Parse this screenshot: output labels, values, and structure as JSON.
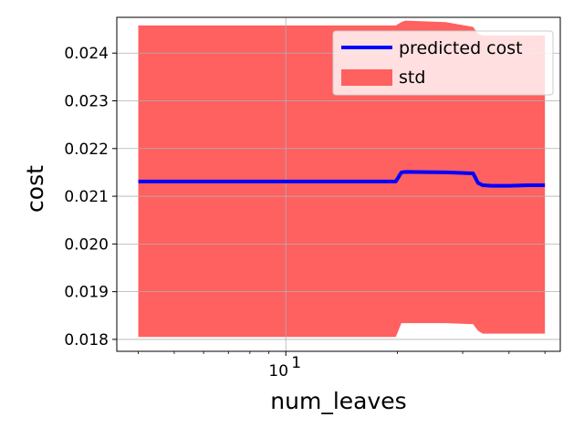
{
  "chart_data": {
    "type": "line",
    "xlabel": "num_leaves",
    "ylabel": "cost",
    "xscale": "log",
    "xlim": [
      3.5,
      55
    ],
    "ylim": [
      0.01775,
      0.02475
    ],
    "grid": true,
    "legend_position": "top-right",
    "x_ticks": [
      {
        "value": 10,
        "label": "10",
        "exponent": "1"
      }
    ],
    "y_ticks": [
      {
        "value": 0.018,
        "label": "0.018"
      },
      {
        "value": 0.019,
        "label": "0.019"
      },
      {
        "value": 0.02,
        "label": "0.020"
      },
      {
        "value": 0.021,
        "label": "0.021"
      },
      {
        "value": 0.022,
        "label": "0.022"
      },
      {
        "value": 0.023,
        "label": "0.023"
      },
      {
        "value": 0.024,
        "label": "0.024"
      }
    ],
    "series": [
      {
        "name": "predicted cost",
        "color": "#0000ff",
        "x": [
          4,
          19.8,
          20.5,
          21,
          27,
          32,
          33,
          34,
          36,
          40,
          45,
          50
        ],
        "y": [
          0.02131,
          0.02131,
          0.0215,
          0.02151,
          0.0215,
          0.02148,
          0.02128,
          0.02123,
          0.02122,
          0.02122,
          0.02123,
          0.02123
        ]
      },
      {
        "name": "std",
        "color": "#ff6060",
        "x": [
          4,
          19.8,
          20.5,
          21,
          27,
          32,
          33,
          34,
          36,
          40,
          45,
          50
        ],
        "upper": [
          0.02458,
          0.02458,
          0.02465,
          0.02468,
          0.02465,
          0.02455,
          0.0244,
          0.02437,
          0.02437,
          0.02437,
          0.02437,
          0.02437
        ],
        "lower": [
          0.01805,
          0.01805,
          0.01834,
          0.01834,
          0.01834,
          0.01832,
          0.01818,
          0.01812,
          0.01812,
          0.01812,
          0.01812,
          0.01812
        ]
      }
    ],
    "legend": [
      {
        "label": "predicted cost",
        "kind": "line",
        "color": "#0000ff"
      },
      {
        "label": "std",
        "kind": "patch",
        "color": "#ff6060"
      }
    ]
  }
}
